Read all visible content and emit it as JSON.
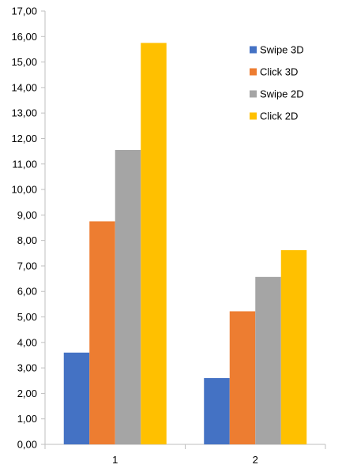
{
  "chart_data": {
    "type": "bar",
    "categories": [
      "1",
      "2"
    ],
    "series": [
      {
        "name": "Swipe 3D",
        "color": "#4472c4",
        "values": [
          3.6,
          2.6
        ]
      },
      {
        "name": "Click 3D",
        "color": "#ed7d31",
        "values": [
          8.75,
          5.22
        ]
      },
      {
        "name": "Swipe 2D",
        "color": "#a5a5a5",
        "values": [
          11.55,
          6.57
        ]
      },
      {
        "name": "Click 2D",
        "color": "#ffc000",
        "values": [
          15.75,
          7.62
        ]
      }
    ],
    "y_ticks": [
      "0,00",
      "1,00",
      "2,00",
      "3,00",
      "4,00",
      "5,00",
      "6,00",
      "7,00",
      "8,00",
      "9,00",
      "10,00",
      "11,00",
      "12,00",
      "13,00",
      "14,00",
      "15,00",
      "16,00",
      "17,00"
    ],
    "ylim": [
      0,
      17
    ],
    "grid": false,
    "legend_position": "top-right"
  }
}
